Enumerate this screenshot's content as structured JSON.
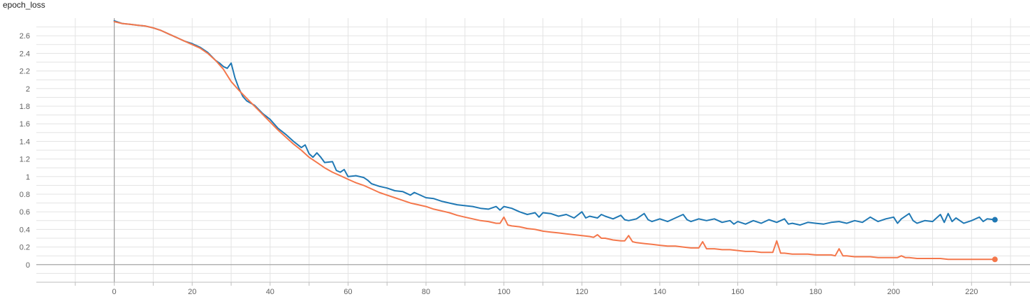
{
  "chart_data": {
    "type": "line",
    "title": "epoch_loss",
    "xlabel": "",
    "ylabel": "",
    "xlim": [
      -20,
      235
    ],
    "ylim": [
      -0.2,
      2.8
    ],
    "x_ticks": [
      0,
      20,
      40,
      60,
      80,
      100,
      120,
      140,
      160,
      180,
      200,
      220
    ],
    "y_ticks": [
      0,
      0.2,
      0.4,
      0.6,
      0.8,
      1,
      1.2,
      1.4,
      1.6,
      1.8,
      2,
      2.2,
      2.4,
      2.6
    ],
    "grid": true,
    "series": [
      {
        "color": "#1f78b4",
        "points": [
          [
            0,
            2.77
          ],
          [
            2,
            2.74
          ],
          [
            4,
            2.73
          ],
          [
            6,
            2.72
          ],
          [
            8,
            2.71
          ],
          [
            10,
            2.69
          ],
          [
            12,
            2.66
          ],
          [
            14,
            2.62
          ],
          [
            16,
            2.58
          ],
          [
            18,
            2.54
          ],
          [
            20,
            2.51
          ],
          [
            22,
            2.47
          ],
          [
            24,
            2.41
          ],
          [
            26,
            2.32
          ],
          [
            27,
            2.29
          ],
          [
            28,
            2.25
          ],
          [
            29,
            2.23
          ],
          [
            30,
            2.29
          ],
          [
            31,
            2.12
          ],
          [
            32,
            2.0
          ],
          [
            33,
            1.91
          ],
          [
            34,
            1.86
          ],
          [
            36,
            1.81
          ],
          [
            38,
            1.72
          ],
          [
            40,
            1.65
          ],
          [
            42,
            1.55
          ],
          [
            44,
            1.48
          ],
          [
            46,
            1.4
          ],
          [
            48,
            1.33
          ],
          [
            49,
            1.36
          ],
          [
            50,
            1.26
          ],
          [
            51,
            1.22
          ],
          [
            52,
            1.27
          ],
          [
            53,
            1.22
          ],
          [
            54,
            1.16
          ],
          [
            56,
            1.17
          ],
          [
            57,
            1.07
          ],
          [
            58,
            1.05
          ],
          [
            59,
            1.08
          ],
          [
            60,
            1.0
          ],
          [
            62,
            1.01
          ],
          [
            64,
            0.99
          ],
          [
            65,
            0.96
          ],
          [
            66,
            0.92
          ],
          [
            68,
            0.89
          ],
          [
            70,
            0.87
          ],
          [
            72,
            0.84
          ],
          [
            74,
            0.83
          ],
          [
            76,
            0.79
          ],
          [
            77,
            0.82
          ],
          [
            78,
            0.8
          ],
          [
            80,
            0.76
          ],
          [
            82,
            0.75
          ],
          [
            84,
            0.72
          ],
          [
            86,
            0.7
          ],
          [
            88,
            0.68
          ],
          [
            90,
            0.67
          ],
          [
            92,
            0.66
          ],
          [
            94,
            0.64
          ],
          [
            96,
            0.63
          ],
          [
            98,
            0.66
          ],
          [
            99,
            0.62
          ],
          [
            100,
            0.66
          ],
          [
            102,
            0.64
          ],
          [
            104,
            0.6
          ],
          [
            106,
            0.57
          ],
          [
            108,
            0.59
          ],
          [
            109,
            0.54
          ],
          [
            110,
            0.59
          ],
          [
            112,
            0.58
          ],
          [
            114,
            0.55
          ],
          [
            116,
            0.57
          ],
          [
            118,
            0.53
          ],
          [
            120,
            0.6
          ],
          [
            121,
            0.53
          ],
          [
            122,
            0.55
          ],
          [
            124,
            0.53
          ],
          [
            125,
            0.57
          ],
          [
            126,
            0.55
          ],
          [
            128,
            0.52
          ],
          [
            130,
            0.56
          ],
          [
            131,
            0.51
          ],
          [
            132,
            0.5
          ],
          [
            134,
            0.52
          ],
          [
            136,
            0.58
          ],
          [
            137,
            0.51
          ],
          [
            138,
            0.49
          ],
          [
            140,
            0.52
          ],
          [
            142,
            0.49
          ],
          [
            144,
            0.53
          ],
          [
            146,
            0.57
          ],
          [
            147,
            0.51
          ],
          [
            148,
            0.49
          ],
          [
            150,
            0.52
          ],
          [
            152,
            0.5
          ],
          [
            154,
            0.52
          ],
          [
            156,
            0.48
          ],
          [
            158,
            0.5
          ],
          [
            159,
            0.46
          ],
          [
            160,
            0.49
          ],
          [
            162,
            0.46
          ],
          [
            164,
            0.5
          ],
          [
            166,
            0.47
          ],
          [
            168,
            0.51
          ],
          [
            170,
            0.48
          ],
          [
            172,
            0.52
          ],
          [
            173,
            0.46
          ],
          [
            174,
            0.47
          ],
          [
            176,
            0.45
          ],
          [
            178,
            0.48
          ],
          [
            180,
            0.47
          ],
          [
            182,
            0.46
          ],
          [
            184,
            0.48
          ],
          [
            186,
            0.49
          ],
          [
            188,
            0.47
          ],
          [
            190,
            0.5
          ],
          [
            192,
            0.48
          ],
          [
            194,
            0.54
          ],
          [
            196,
            0.49
          ],
          [
            198,
            0.52
          ],
          [
            200,
            0.54
          ],
          [
            201,
            0.47
          ],
          [
            202,
            0.52
          ],
          [
            204,
            0.58
          ],
          [
            205,
            0.5
          ],
          [
            206,
            0.47
          ],
          [
            208,
            0.5
          ],
          [
            210,
            0.49
          ],
          [
            212,
            0.57
          ],
          [
            213,
            0.48
          ],
          [
            214,
            0.58
          ],
          [
            215,
            0.49
          ],
          [
            216,
            0.53
          ],
          [
            218,
            0.47
          ],
          [
            220,
            0.5
          ],
          [
            222,
            0.54
          ],
          [
            223,
            0.49
          ],
          [
            224,
            0.52
          ],
          [
            226,
            0.51
          ]
        ]
      },
      {
        "color": "#f4774b",
        "points": [
          [
            0,
            2.76
          ],
          [
            2,
            2.74
          ],
          [
            4,
            2.73
          ],
          [
            6,
            2.72
          ],
          [
            8,
            2.71
          ],
          [
            10,
            2.69
          ],
          [
            12,
            2.66
          ],
          [
            14,
            2.62
          ],
          [
            16,
            2.58
          ],
          [
            18,
            2.54
          ],
          [
            20,
            2.5
          ],
          [
            22,
            2.46
          ],
          [
            24,
            2.4
          ],
          [
            26,
            2.32
          ],
          [
            28,
            2.22
          ],
          [
            30,
            2.08
          ],
          [
            32,
            1.98
          ],
          [
            34,
            1.89
          ],
          [
            36,
            1.8
          ],
          [
            38,
            1.71
          ],
          [
            40,
            1.62
          ],
          [
            42,
            1.53
          ],
          [
            44,
            1.45
          ],
          [
            46,
            1.37
          ],
          [
            48,
            1.3
          ],
          [
            50,
            1.22
          ],
          [
            52,
            1.16
          ],
          [
            54,
            1.1
          ],
          [
            56,
            1.05
          ],
          [
            58,
            1.01
          ],
          [
            60,
            0.97
          ],
          [
            62,
            0.93
          ],
          [
            64,
            0.9
          ],
          [
            66,
            0.86
          ],
          [
            68,
            0.82
          ],
          [
            70,
            0.79
          ],
          [
            72,
            0.76
          ],
          [
            74,
            0.73
          ],
          [
            76,
            0.7
          ],
          [
            78,
            0.68
          ],
          [
            80,
            0.66
          ],
          [
            82,
            0.63
          ],
          [
            84,
            0.61
          ],
          [
            86,
            0.59
          ],
          [
            88,
            0.56
          ],
          [
            90,
            0.54
          ],
          [
            92,
            0.52
          ],
          [
            94,
            0.5
          ],
          [
            96,
            0.49
          ],
          [
            98,
            0.47
          ],
          [
            99,
            0.47
          ],
          [
            100,
            0.54
          ],
          [
            101,
            0.45
          ],
          [
            102,
            0.44
          ],
          [
            104,
            0.43
          ],
          [
            106,
            0.41
          ],
          [
            108,
            0.4
          ],
          [
            110,
            0.38
          ],
          [
            112,
            0.37
          ],
          [
            114,
            0.36
          ],
          [
            116,
            0.35
          ],
          [
            118,
            0.34
          ],
          [
            120,
            0.33
          ],
          [
            122,
            0.32
          ],
          [
            123,
            0.31
          ],
          [
            124,
            0.34
          ],
          [
            125,
            0.3
          ],
          [
            126,
            0.3
          ],
          [
            128,
            0.28
          ],
          [
            130,
            0.27
          ],
          [
            131,
            0.27
          ],
          [
            132,
            0.33
          ],
          [
            133,
            0.26
          ],
          [
            134,
            0.25
          ],
          [
            136,
            0.24
          ],
          [
            138,
            0.23
          ],
          [
            140,
            0.22
          ],
          [
            142,
            0.21
          ],
          [
            144,
            0.21
          ],
          [
            146,
            0.2
          ],
          [
            148,
            0.19
          ],
          [
            150,
            0.19
          ],
          [
            151,
            0.26
          ],
          [
            152,
            0.18
          ],
          [
            154,
            0.18
          ],
          [
            156,
            0.17
          ],
          [
            158,
            0.17
          ],
          [
            160,
            0.16
          ],
          [
            162,
            0.15
          ],
          [
            164,
            0.15
          ],
          [
            166,
            0.14
          ],
          [
            168,
            0.14
          ],
          [
            169,
            0.14
          ],
          [
            170,
            0.27
          ],
          [
            171,
            0.13
          ],
          [
            172,
            0.13
          ],
          [
            174,
            0.12
          ],
          [
            176,
            0.12
          ],
          [
            178,
            0.12
          ],
          [
            180,
            0.11
          ],
          [
            182,
            0.11
          ],
          [
            184,
            0.11
          ],
          [
            185,
            0.1
          ],
          [
            186,
            0.18
          ],
          [
            187,
            0.1
          ],
          [
            188,
            0.1
          ],
          [
            190,
            0.09
          ],
          [
            192,
            0.09
          ],
          [
            194,
            0.09
          ],
          [
            196,
            0.08
          ],
          [
            198,
            0.08
          ],
          [
            200,
            0.08
          ],
          [
            201,
            0.08
          ],
          [
            202,
            0.1
          ],
          [
            203,
            0.08
          ],
          [
            204,
            0.08
          ],
          [
            206,
            0.07
          ],
          [
            208,
            0.07
          ],
          [
            210,
            0.07
          ],
          [
            212,
            0.07
          ],
          [
            214,
            0.06
          ],
          [
            216,
            0.06
          ],
          [
            218,
            0.06
          ],
          [
            220,
            0.06
          ],
          [
            222,
            0.06
          ],
          [
            224,
            0.06
          ],
          [
            226,
            0.06
          ]
        ]
      }
    ]
  }
}
